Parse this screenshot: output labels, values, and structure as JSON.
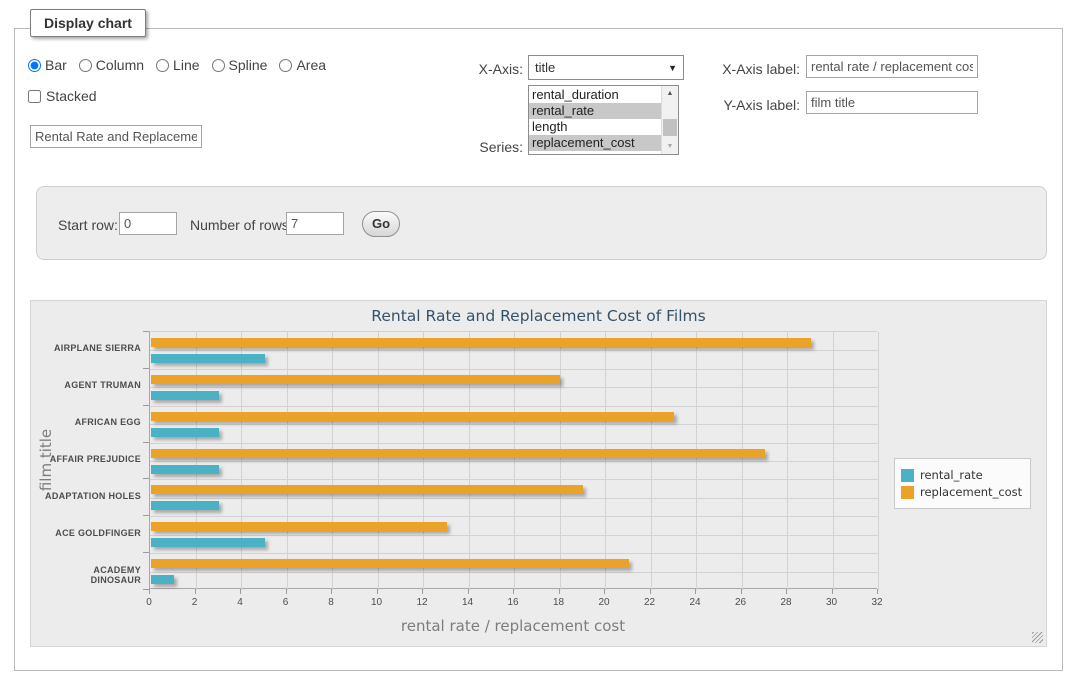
{
  "panel": {
    "legend": "Display chart"
  },
  "chart_types": {
    "options": [
      {
        "label": "Bar",
        "checked": true
      },
      {
        "label": "Column",
        "checked": false
      },
      {
        "label": "Line",
        "checked": false
      },
      {
        "label": "Spline",
        "checked": false
      },
      {
        "label": "Area",
        "checked": false
      }
    ]
  },
  "stacked": {
    "label": "Stacked",
    "checked": false
  },
  "chart_title_input": {
    "value": "Rental Rate and Replacement Cost of Films"
  },
  "x_axis_select": {
    "label": "X-Axis:",
    "selected": "title"
  },
  "series_list": {
    "label": "Series:",
    "options": [
      {
        "label": "rental_duration",
        "selected": false
      },
      {
        "label": "rental_rate",
        "selected": true
      },
      {
        "label": "length",
        "selected": false
      },
      {
        "label": "replacement_cost",
        "selected": true
      }
    ]
  },
  "axis_labels": {
    "x_label": "X-Axis label:",
    "x_value": "rental rate / replacement cost",
    "y_label": "Y-Axis label:",
    "y_value": "film title"
  },
  "row_controls": {
    "start_label": "Start row:",
    "start_value": "0",
    "count_label": "Number of rows:",
    "count_value": "7",
    "go": "Go"
  },
  "chart_data": {
    "type": "bar",
    "orientation": "horizontal",
    "title": "Rental Rate and Replacement Cost of Films",
    "xlabel": "rental rate / replacement cost",
    "ylabel": "film title",
    "categories": [
      "AIRPLANE SIERRA",
      "AGENT TRUMAN",
      "AFRICAN EGG",
      "AFFAIR PREJUDICE",
      "ADAPTATION HOLES",
      "ACE GOLDFINGER",
      "ACADEMY DINOSAUR"
    ],
    "series": [
      {
        "name": "rental_rate",
        "color": "#4bb2c5",
        "values": [
          4.99,
          2.99,
          2.99,
          2.99,
          2.99,
          4.99,
          0.99
        ]
      },
      {
        "name": "replacement_cost",
        "color": "#EAA228",
        "values": [
          28.99,
          17.99,
          22.99,
          26.99,
          18.99,
          12.99,
          20.99
        ]
      }
    ],
    "bar_order_top_to_bottom": [
      "replacement_cost",
      "rental_rate"
    ],
    "xlim": [
      0,
      32
    ],
    "xtick_step": 2,
    "grid": true,
    "legend_position": "right"
  }
}
